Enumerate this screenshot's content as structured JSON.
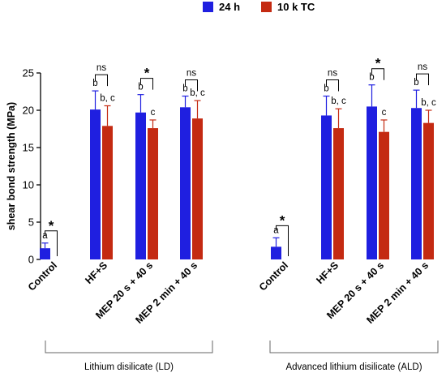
{
  "chart_data": {
    "type": "bar",
    "ylabel": "shear bond strength (MPa)",
    "ylim": [
      0,
      25
    ],
    "yticks": [
      0,
      5,
      10,
      15,
      20,
      25
    ],
    "legend": {
      "placement": "top-center",
      "entries": [
        "24 h",
        "10 k TC"
      ]
    },
    "series": [
      {
        "name": "24 h",
        "color": "#1f1fe0"
      },
      {
        "name": "10 k TC",
        "color": "#c42a12"
      }
    ],
    "groups": [
      {
        "label": "Lithium disilicate (LD)",
        "categories": [
          {
            "label": "Control",
            "values": [
              1.5,
              0
            ],
            "errors": [
              0.7,
              0
            ],
            "letters": [
              "a",
              ""
            ],
            "comparison": "*"
          },
          {
            "label": "HF+S",
            "values": [
              20.1,
              17.9
            ],
            "errors": [
              2.5,
              2.7
            ],
            "letters": [
              "b",
              "b, c"
            ],
            "comparison": "ns"
          },
          {
            "label": "MEP 20 s + 40 s",
            "values": [
              19.7,
              17.6
            ],
            "errors": [
              2.4,
              1.1
            ],
            "letters": [
              "b",
              "c"
            ],
            "comparison": "*"
          },
          {
            "label": "MEP 2 min + 40 s",
            "values": [
              20.4,
              18.9
            ],
            "errors": [
              1.5,
              2.4
            ],
            "letters": [
              "b",
              "b, c"
            ],
            "comparison": "ns"
          }
        ]
      },
      {
        "label": "Advanced lithium disilicate (ALD)",
        "categories": [
          {
            "label": "Control",
            "values": [
              1.7,
              0
            ],
            "errors": [
              1.2,
              0
            ],
            "letters": [
              "a",
              ""
            ],
            "comparison": "*"
          },
          {
            "label": "HF+S",
            "values": [
              19.3,
              17.6
            ],
            "errors": [
              2.6,
              2.6
            ],
            "letters": [
              "b",
              "b, c"
            ],
            "comparison": "ns"
          },
          {
            "label": "MEP 20 s + 40 s",
            "values": [
              20.5,
              17.1
            ],
            "errors": [
              2.9,
              1.6
            ],
            "letters": [
              "b",
              "c"
            ],
            "comparison": "*"
          },
          {
            "label": "MEP 2 min + 40 s",
            "values": [
              20.3,
              18.3
            ],
            "errors": [
              2.4,
              1.7
            ],
            "letters": [
              "b",
              "b, c"
            ],
            "comparison": "ns"
          }
        ]
      }
    ]
  }
}
